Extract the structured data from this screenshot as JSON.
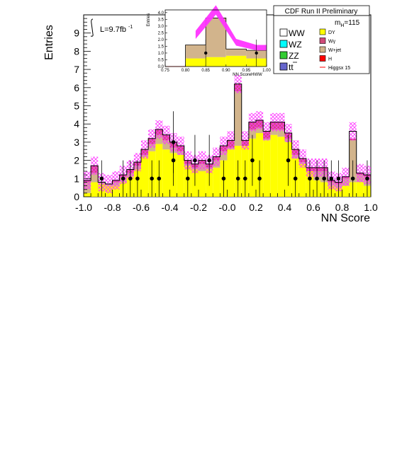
{
  "chart_data": {
    "type": "bar",
    "title": "CDF Run II Preliminary",
    "xlabel": "NN Score",
    "ylabel": "Entries",
    "xlim": [
      -1.0,
      1.0
    ],
    "ylim": [
      0,
      10
    ],
    "x_ticks": [
      "-1.0",
      "-0.8",
      "-0.6",
      "-0.4",
      "-0.2",
      "-0.0",
      "0.2",
      "0.4",
      "0.6",
      "0.8",
      "1.0"
    ],
    "y_ticks": [
      "0",
      "1",
      "2",
      "3",
      "4",
      "5",
      "6",
      "7",
      "8",
      "9"
    ],
    "bin_edges": [
      -1.0,
      -0.95,
      -0.9,
      -0.85,
      -0.8,
      -0.75,
      -0.7,
      -0.65,
      -0.6,
      -0.55,
      -0.5,
      -0.45,
      -0.4,
      -0.35,
      -0.3,
      -0.25,
      -0.2,
      -0.15,
      -0.1,
      -0.05,
      0.0,
      0.05,
      0.1,
      0.15,
      0.2,
      0.25,
      0.3,
      0.35,
      0.4,
      0.45,
      0.5,
      0.55,
      0.6,
      0.65,
      0.7,
      0.75,
      0.8,
      0.85,
      0.9,
      0.95,
      1.0
    ],
    "stack": [
      {
        "name": "DY",
        "color": "#ffff00",
        "values": [
          0.2,
          0.8,
          0.7,
          0.6,
          0.6,
          0.8,
          1.1,
          1.5,
          2.2,
          2.5,
          2.9,
          2.6,
          2.4,
          2.3,
          1.7,
          1.5,
          1.4,
          1.5,
          1.6,
          2.0,
          2.6,
          2.8,
          2.8,
          3.2,
          3.5,
          3.1,
          3.4,
          3.3,
          3.0,
          2.1,
          1.8,
          1.4,
          0.9,
          0.8,
          0.6,
          0.5,
          0.6,
          0.8,
          0.8,
          0.6
        ]
      },
      {
        "name": "W+jet",
        "color": "#d2b48c",
        "values": [
          0.6,
          0.5,
          0.1,
          0.1,
          0.2,
          0.3,
          0.2,
          0.2,
          0.1,
          0.4,
          0.5,
          0.5,
          0.3,
          0.2,
          0.1,
          0.1,
          0.4,
          0.1,
          0.4,
          0.5,
          0.1,
          3.0,
          0.0,
          0.5,
          0.3,
          0.1,
          0.3,
          0.4,
          0.2,
          0.2,
          0.1,
          0.0,
          0.5,
          0.6,
          0.2,
          0.2,
          0.4,
          2.3,
          0.4,
          0.5
        ]
      },
      {
        "name": "Wγ",
        "color": "#d04b79",
        "values": [
          0.1,
          0.4,
          0.0,
          0.0,
          0.1,
          0.1,
          0.2,
          0.2,
          0.3,
          0.3,
          0.3,
          0.3,
          0.3,
          0.3,
          0.2,
          0.2,
          0.2,
          0.2,
          0.2,
          0.3,
          0.4,
          0.4,
          0.3,
          0.4,
          0.4,
          0.4,
          0.4,
          0.4,
          0.3,
          0.3,
          0.2,
          0.2,
          0.2,
          0.2,
          0.1,
          0.1,
          0.1,
          0.1,
          0.1,
          0.1
        ]
      }
    ],
    "total_outline": [
      0.9,
      1.7,
      0.8,
      0.7,
      0.9,
      1.2,
      1.5,
      1.9,
      2.6,
      3.2,
      3.7,
      3.4,
      3.0,
      2.8,
      2.0,
      1.8,
      2.0,
      1.8,
      2.2,
      2.8,
      3.1,
      6.2,
      3.1,
      4.1,
      4.2,
      3.6,
      4.1,
      4.1,
      3.5,
      2.6,
      2.1,
      1.6,
      1.6,
      1.6,
      0.9,
      0.8,
      1.1,
      3.6,
      1.3,
      1.2
    ],
    "band_half_width": 0.5,
    "data_points": {
      "name": "Data",
      "x": [
        -0.875,
        -0.725,
        -0.675,
        -0.625,
        -0.525,
        -0.475,
        -0.375,
        -0.375,
        -0.275,
        -0.225,
        -0.125,
        -0.025,
        0.075,
        0.125,
        0.175,
        0.225,
        0.425,
        0.475,
        0.575,
        0.625,
        0.675,
        0.725,
        0.775,
        0.875,
        0.975
      ],
      "y": [
        1,
        1,
        1,
        1,
        1,
        1,
        3,
        2,
        1,
        2,
        2,
        1,
        1,
        1,
        2,
        1,
        2,
        1,
        1,
        1,
        1,
        1,
        1,
        1,
        1
      ],
      "err": [
        1.0,
        1.0,
        1.0,
        1.0,
        1.0,
        1.0,
        1.7,
        1.4,
        1.0,
        1.4,
        1.4,
        1.0,
        1.0,
        1.0,
        1.4,
        1.0,
        1.4,
        1.0,
        1.0,
        1.0,
        1.0,
        1.0,
        1.0,
        1.0,
        1.0
      ]
    },
    "luminosity_label": "L=9.7fb",
    "luminosity_exponent": "-1",
    "mass_label_main": "m",
    "mass_label_sub": "H",
    "mass_label_value": "=115",
    "legend_placement": "top-right",
    "legend_left": [
      {
        "label": "WW",
        "color": "#ffffff"
      },
      {
        "label": "WZ",
        "color": "#00ffff"
      },
      {
        "label": "ZZ",
        "color": "#33cc33"
      },
      {
        "label": "tt",
        "color": "#6666cc"
      }
    ],
    "legend_right": [
      {
        "label": "DY",
        "color": "#ffff00"
      },
      {
        "label": "Wγ",
        "color": "#d04b79"
      },
      {
        "label": "W+jet",
        "color": "#d2b48c"
      },
      {
        "label": "H",
        "color": "#ff0000"
      },
      {
        "label": "Higgsx 15",
        "color": "#ff0000",
        "line": true
      }
    ],
    "inset": {
      "xlabel": "NN ScoreHWW",
      "ylabel": "Entries",
      "xlim": [
        0.75,
        1.0
      ],
      "ylim": [
        0,
        4.2
      ],
      "x_ticks": [
        "0.75",
        "0.80",
        "0.85",
        "0.90",
        "0.95",
        "1.00"
      ],
      "y_ticks": [
        "0.0",
        "0.5",
        "1.0",
        "1.5",
        "2.0",
        "2.5",
        "3.0",
        "3.5",
        "4.0"
      ],
      "bin_edges": [
        0.75,
        0.8,
        0.85,
        0.9,
        0.95,
        1.0
      ],
      "dy": [
        0.0,
        0.6,
        0.7,
        0.8,
        0.6
      ],
      "wjet": [
        0.0,
        1.0,
        2.9,
        0.5,
        0.6
      ],
      "band_center": [
        0.0,
        2.35,
        4.2,
        1.8,
        1.4
      ],
      "band_half_width": [
        0.0,
        0.3,
        0.35,
        0.25,
        0.2
      ],
      "data_x": [
        0.85,
        0.975
      ],
      "data_y": [
        1,
        1
      ]
    }
  }
}
